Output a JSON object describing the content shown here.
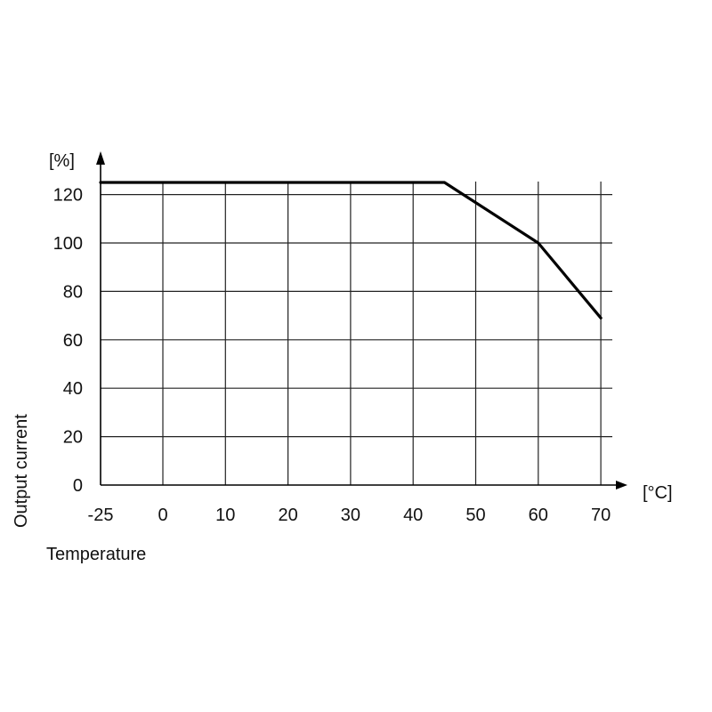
{
  "chart_data": {
    "type": "line",
    "x_unit_label": "[°C]",
    "y_unit_label": "[%]",
    "xlabel": "Temperature",
    "ylabel": "Output current",
    "x_ticks": [
      -25,
      0,
      10,
      20,
      30,
      40,
      50,
      60,
      70
    ],
    "y_ticks": [
      0,
      20,
      40,
      60,
      80,
      100,
      120
    ],
    "xlim": [
      -25,
      70
    ],
    "ylim": [
      0,
      125
    ],
    "grid": true,
    "series": [
      {
        "x": [
          -25,
          45,
          60,
          70
        ],
        "y": [
          125,
          125,
          100,
          69
        ]
      }
    ],
    "colors": {
      "line": "#000000",
      "grid": "#222222",
      "text": "#111111"
    }
  }
}
